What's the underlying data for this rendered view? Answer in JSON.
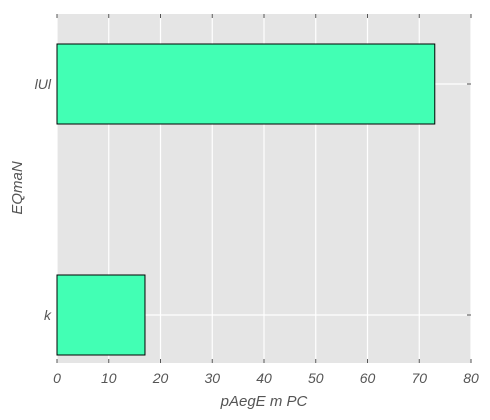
{
  "chart_data": {
    "type": "bar",
    "orientation": "horizontal",
    "categories": [
      "k",
      "lUl"
    ],
    "values": [
      17,
      73
    ],
    "xlabel": "pAegE m PC",
    "ylabel": "EQmaN",
    "xlim": [
      0,
      80
    ],
    "xticks": [
      "0",
      "10",
      "20",
      "30",
      "40",
      "50",
      "60",
      "70",
      "80"
    ],
    "grid": true,
    "legend": "none",
    "colors": {
      "bar_fill": "#42ffb4",
      "bar_edge": "#000000",
      "panel_bg": "#e5e5e5",
      "grid": "#ffffff",
      "text": "#555555"
    }
  }
}
